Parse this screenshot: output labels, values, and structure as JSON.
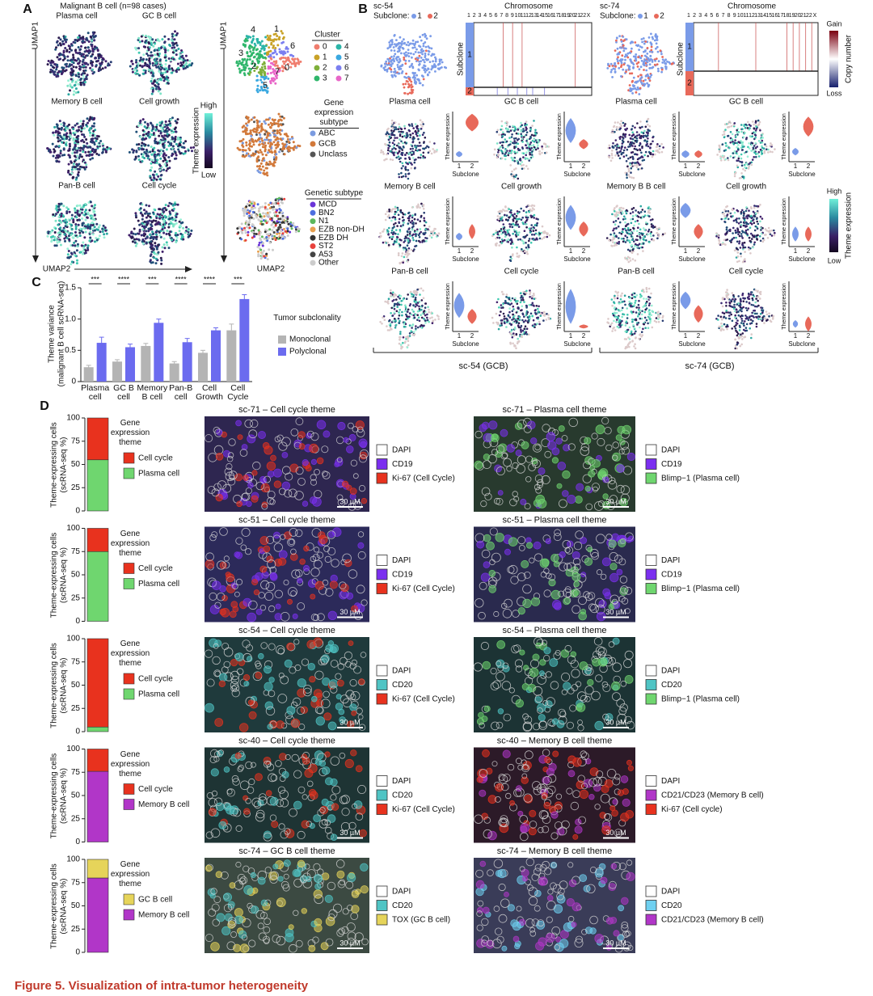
{
  "caption": "Figure 5. Visualization of intra-tumor heterogeneity",
  "panel_a": {
    "label": "A",
    "title": "Malignant B cell (n=98 cases)",
    "themes": [
      "Plasma cell",
      "GC B cell",
      "Memory B cell",
      "Cell growth",
      "Pan-B cell",
      "Cell cycle"
    ],
    "colorbar": {
      "high": "High",
      "title": "Theme expression",
      "low": "Low"
    },
    "x_axis": "UMAP2",
    "y_axis": "UMAP1",
    "cluster_labels": [
      "4",
      "1",
      "6",
      "3",
      "2",
      "0",
      "5",
      "7"
    ],
    "cluster_legend": {
      "title": "Cluster",
      "items": [
        {
          "label": "0",
          "color": "#f07d6e"
        },
        {
          "label": "1",
          "color": "#c9a227"
        },
        {
          "label": "2",
          "color": "#7fb03a"
        },
        {
          "label": "3",
          "color": "#2fb66b"
        },
        {
          "label": "4",
          "color": "#2bb5a8"
        },
        {
          "label": "5",
          "color": "#3aa8e0"
        },
        {
          "label": "6",
          "color": "#7b7ff0"
        },
        {
          "label": "7",
          "color": "#e866c8"
        }
      ]
    },
    "expression_legend": {
      "title": "Gene expression subtype",
      "items": [
        {
          "label": "ABC",
          "color": "#7b9be0"
        },
        {
          "label": "GCB",
          "color": "#d2793a"
        },
        {
          "label": "Unclass",
          "color": "#555555"
        }
      ]
    },
    "genetic_legend": {
      "title": "Genetic subtype",
      "items": [
        {
          "label": "MCD",
          "color": "#6a34d8"
        },
        {
          "label": "BN2",
          "color": "#4d6ee0"
        },
        {
          "label": "N1",
          "color": "#5cb85c"
        },
        {
          "label": "EZB non-DH",
          "color": "#e8a050"
        },
        {
          "label": "EZB DH",
          "color": "#333333"
        },
        {
          "label": "ST2",
          "color": "#e8413c"
        },
        {
          "label": "A53",
          "color": "#444444"
        },
        {
          "label": "Other",
          "color": "#cccccc"
        }
      ]
    }
  },
  "panel_b": {
    "label": "B",
    "chromosome_title": "Chromosome",
    "chromosomes": [
      "1",
      "2",
      "3",
      "4",
      "5",
      "6",
      "7",
      "8",
      "9",
      "10",
      "11",
      "12",
      "13",
      "14",
      "15",
      "16",
      "17",
      "18",
      "19",
      "20",
      "21",
      "22",
      "X"
    ],
    "heatmap_ylabel": "Subclone",
    "subclone_label": "Subclone:",
    "subclones": [
      {
        "label": "1",
        "color": "#7a9be8"
      },
      {
        "label": "2",
        "color": "#e8695a"
      }
    ],
    "copy_number": {
      "gain": "Gain",
      "title": "Copy number",
      "loss": "Loss"
    },
    "colorbar": {
      "high": "High",
      "title": "Theme expression",
      "low": "Low"
    },
    "violin_ylabel": "Theme expression",
    "violin_xlabel": "Subclone",
    "violin_ticks": [
      "1",
      "2"
    ],
    "samples": [
      {
        "name": "sc-54",
        "footer": "sc-54 (GCB)",
        "themes": [
          "Plasma cell",
          "GC B cell",
          "Memory B cell",
          "Cell growth",
          "Pan-B cell",
          "Cell cycle"
        ]
      },
      {
        "name": "sc-74",
        "footer": "sc-74 (GCB)",
        "themes": [
          "Plasma cell",
          "GC B cell",
          "Memory B B cell",
          "Cell growth",
          "Pan-B cell",
          "Cell cycle"
        ]
      }
    ]
  },
  "chart_data": [
    {
      "type": "bar",
      "panel_label": "C",
      "ylabel": "Theme variance",
      "ylabel2": "(malignant B cell scRNA-seq)",
      "categories": [
        "Plasma cell",
        "GC B cell",
        "Memory B cell",
        "Pan-B cell",
        "Cell Growth",
        "Cell Cycle"
      ],
      "annotations": [
        "***",
        "****",
        "***",
        "****",
        "****",
        "***"
      ],
      "ylim": [
        0,
        1.5
      ],
      "yticks": [
        0,
        0.5,
        {
          "value": 1,
          "label": "1.0"
        },
        1.5
      ],
      "legend_title": "Tumor subclonality",
      "series": [
        {
          "name": "Monoclonal",
          "color": "#b4b4b4",
          "values": [
            0.23,
            0.32,
            0.57,
            0.29,
            0.46,
            0.82
          ],
          "errors": [
            0.03,
            0.03,
            0.04,
            0.03,
            0.04,
            0.1
          ]
        },
        {
          "name": "Polyclonal",
          "color": "#6b6bef",
          "values": [
            0.62,
            0.55,
            0.94,
            0.63,
            0.82,
            1.32
          ],
          "errors": [
            0.09,
            0.05,
            0.06,
            0.06,
            0.04,
            0.07
          ]
        }
      ]
    },
    {
      "type": "bar",
      "stacked": true,
      "panel_label": "D",
      "ylim": [
        0,
        100
      ],
      "yticks": [
        0,
        25,
        50,
        75,
        100
      ],
      "ylabel": "Theme-expressing cells",
      "ylabel2": "(scRNA-seq %)",
      "legend_title": "Gene expression theme",
      "series": [
        {
          "name": "Plasma cell",
          "color": "#6fd66f",
          "values": [
            55
          ]
        },
        {
          "name": "Cell cycle",
          "color": "#e8321e",
          "values": [
            45
          ]
        }
      ]
    },
    {
      "type": "bar",
      "stacked": true,
      "ylim": [
        0,
        100
      ],
      "yticks": [
        0,
        25,
        50,
        75,
        100
      ],
      "ylabel": "Theme-expressing cells",
      "ylabel2": "(scRNA-seq %)",
      "legend_title": "Gene expression theme",
      "series": [
        {
          "name": "Plasma cell",
          "color": "#6fd66f",
          "values": [
            75
          ]
        },
        {
          "name": "Cell cycle",
          "color": "#e8321e",
          "values": [
            25
          ]
        }
      ]
    },
    {
      "type": "bar",
      "stacked": true,
      "ylim": [
        0,
        100
      ],
      "yticks": [
        0,
        25,
        50,
        75,
        100
      ],
      "ylabel": "Theme-expressing cells",
      "ylabel2": "(scRNA-seq %)",
      "legend_title": "Gene expression theme",
      "series": [
        {
          "name": "Plasma cell",
          "color": "#6fd66f",
          "values": [
            5
          ]
        },
        {
          "name": "Cell cycle",
          "color": "#e8321e",
          "values": [
            95
          ]
        }
      ]
    },
    {
      "type": "bar",
      "stacked": true,
      "ylim": [
        0,
        100
      ],
      "yticks": [
        0,
        25,
        50,
        75,
        100
      ],
      "ylabel": "Theme-expressing cells",
      "ylabel2": "(scRNA-seq %)",
      "legend_title": "Gene expression theme",
      "series": [
        {
          "name": "Memory B cell",
          "color": "#b136c8",
          "values": [
            76
          ]
        },
        {
          "name": "Cell cycle",
          "color": "#e8321e",
          "values": [
            24
          ]
        }
      ]
    },
    {
      "type": "bar",
      "stacked": true,
      "ylim": [
        0,
        100
      ],
      "yticks": [
        0,
        25,
        50,
        75,
        100
      ],
      "ylabel": "Theme-expressing cells",
      "ylabel2": "(scRNA-seq %)",
      "legend_title": "Gene expression theme",
      "series": [
        {
          "name": "Memory B cell",
          "color": "#b136c8",
          "values": [
            80
          ]
        },
        {
          "name": "GC B cell",
          "color": "#e6d45a",
          "values": [
            20
          ]
        }
      ]
    }
  ],
  "panel_d": {
    "scale_bar": "30 µM",
    "rows": [
      {
        "images": [
          {
            "title": "sc-71 – Cell cycle theme",
            "legend": [
              {
                "label": "DAPI",
                "color": "#ffffff"
              },
              {
                "label": "CD19",
                "color": "#7b2ff0"
              },
              {
                "label": "Ki-67 (Cell Cycle)",
                "color": "#e8321e"
              }
            ]
          },
          {
            "title": "sc-71 – Plasma cell theme",
            "legend": [
              {
                "label": "DAPI",
                "color": "#ffffff"
              },
              {
                "label": "CD19",
                "color": "#7b2ff0"
              },
              {
                "label": "Blimp−1 (Plasma cell)",
                "color": "#6fd66f"
              }
            ]
          }
        ]
      },
      {
        "images": [
          {
            "title": "sc-51 – Cell cycle theme",
            "legend": [
              {
                "label": "DAPI",
                "color": "#ffffff"
              },
              {
                "label": "CD19",
                "color": "#7b2ff0"
              },
              {
                "label": "Ki-67 (Cell Cycle)",
                "color": "#e8321e"
              }
            ]
          },
          {
            "title": "sc-51 – Plasma cell theme",
            "legend": [
              {
                "label": "DAPI",
                "color": "#ffffff"
              },
              {
                "label": "CD19",
                "color": "#7b2ff0"
              },
              {
                "label": "Blimp−1 (Plasma cell)",
                "color": "#6fd66f"
              }
            ]
          }
        ]
      },
      {
        "images": [
          {
            "title": "sc-54 – Cell cycle theme",
            "legend": [
              {
                "label": "DAPI",
                "color": "#ffffff"
              },
              {
                "label": "CD20",
                "color": "#4fc4c4"
              },
              {
                "label": "Ki-67 (Cell Cycle)",
                "color": "#e8321e"
              }
            ]
          },
          {
            "title": "sc-54 – Plasma cell theme",
            "legend": [
              {
                "label": "DAPI",
                "color": "#ffffff"
              },
              {
                "label": "CD20",
                "color": "#4fc4c4"
              },
              {
                "label": "Blimp−1 (Plasma cell)",
                "color": "#6fd66f"
              }
            ]
          }
        ]
      },
      {
        "images": [
          {
            "title": "sc-40 – Cell cycle theme",
            "legend": [
              {
                "label": "DAPI",
                "color": "#ffffff"
              },
              {
                "label": "CD20",
                "color": "#4fc4c4"
              },
              {
                "label": "Ki-67 (Cell Cycle)",
                "color": "#e8321e"
              }
            ]
          },
          {
            "title": "sc-40 – Memory B cell theme",
            "legend": [
              {
                "label": "DAPI",
                "color": "#ffffff"
              },
              {
                "label": "CD21/CD23 (Memory B cell)",
                "color": "#b136c8"
              },
              {
                "label": "Ki-67 (Cell cycle)",
                "color": "#e8321e"
              }
            ]
          }
        ]
      },
      {
        "images": [
          {
            "title": "sc-74 – GC B cell theme",
            "legend": [
              {
                "label": "DAPI",
                "color": "#ffffff"
              },
              {
                "label": "CD20",
                "color": "#4fc4c4"
              },
              {
                "label": "TOX (GC B cell)",
                "color": "#e6d45a"
              }
            ]
          },
          {
            "title": "sc-74 – Memory B cell theme",
            "legend": [
              {
                "label": "DAPI",
                "color": "#ffffff"
              },
              {
                "label": "CD20",
                "color": "#6fd0f0"
              },
              {
                "label": "CD21/CD23 (Memory B cell)",
                "color": "#b136c8"
              }
            ]
          }
        ]
      }
    ]
  }
}
